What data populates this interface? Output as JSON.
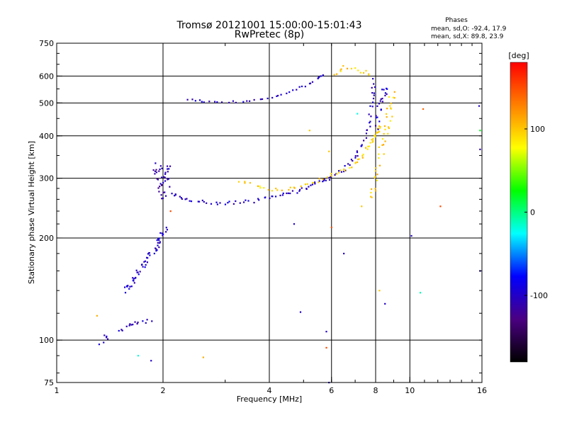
{
  "chart_data": {
    "type": "scatter",
    "title": "Tromsø 20121001 15:00:00-15:01:43",
    "subtitle": "RwPretec (8p)",
    "xlabel": "Frequency [MHz]",
    "ylabel": "Stationary phase Virtual Height [km]",
    "x_scale": "log",
    "y_scale": "log",
    "xlim": [
      1,
      16
    ],
    "ylim": [
      75,
      750
    ],
    "x_ticks": [
      1,
      2,
      4,
      6,
      8,
      10,
      16
    ],
    "x_tick_labels": [
      "1",
      "2",
      "4",
      "6",
      "8",
      "10",
      "16"
    ],
    "y_ticks": [
      75,
      100,
      200,
      300,
      400,
      500,
      600,
      750
    ],
    "y_tick_labels": [
      "75",
      "100",
      "200",
      "300",
      "400",
      "500",
      "600",
      "750"
    ],
    "grid_x": [
      2,
      4,
      6,
      8,
      10
    ],
    "grid_y": [
      100,
      200,
      300,
      400,
      500,
      600
    ],
    "grid": true,
    "stats": {
      "heading": "Phases",
      "line_o": "mean, sd,O: -92.4, 17.9",
      "line_x": "mean, sd,X: 89.8, 23.9"
    },
    "colorbar": {
      "label": "[deg]",
      "range": [
        -180,
        180
      ],
      "ticks": [
        100,
        0,
        -100
      ],
      "tick_labels": [
        "100",
        "0",
        "-100"
      ],
      "colormap": [
        "#000000",
        "#4b0082",
        "#0000ff",
        "#00ffff",
        "#00ff00",
        "#ffff00",
        "#ff8000",
        "#ff0000"
      ]
    },
    "traces": [
      {
        "name": "",
        "phase": -105,
        "n": 6,
        "curve": [
          [
            1.3,
            96
          ],
          [
            1.4,
            101
          ],
          [
            1.35,
            104
          ]
        ],
        "jitter": 0.01
      },
      {
        "name": "",
        "phase": -100,
        "n": 14,
        "curve": [
          [
            1.5,
            105
          ],
          [
            1.6,
            110
          ],
          [
            1.7,
            113
          ],
          [
            1.85,
            115
          ]
        ],
        "jitter": 0.03
      },
      {
        "name": "",
        "phase": -100,
        "n": 55,
        "curve": [
          [
            1.55,
            140
          ],
          [
            1.65,
            150
          ],
          [
            1.75,
            165
          ],
          [
            1.85,
            180
          ],
          [
            1.95,
            195
          ],
          [
            2.03,
            215
          ]
        ],
        "jitter": 0.04
      },
      {
        "name": "",
        "phase": -110,
        "n": 40,
        "curve": [
          [
            1.9,
            330
          ],
          [
            1.95,
            300
          ],
          [
            2.0,
            265
          ],
          [
            2.05,
            330
          ],
          [
            2.1,
            285
          ]
        ],
        "jitter": 0.06
      },
      {
        "name": "",
        "phase": -100,
        "n": 110,
        "curve": [
          [
            2.1,
            270
          ],
          [
            2.3,
            260
          ],
          [
            2.6,
            255
          ],
          [
            3.0,
            253
          ],
          [
            3.5,
            256
          ],
          [
            4.0,
            263
          ],
          [
            4.5,
            270
          ],
          [
            5.0,
            278
          ],
          [
            5.5,
            290
          ],
          [
            6.0,
            303
          ],
          [
            6.5,
            320
          ],
          [
            7.0,
            345
          ],
          [
            7.4,
            385
          ],
          [
            7.7,
            440
          ],
          [
            7.85,
            520
          ],
          [
            7.9,
            590
          ]
        ],
        "jitter": 0.025
      },
      {
        "name": "",
        "phase": 95,
        "n": 60,
        "curve": [
          [
            3.3,
            295
          ],
          [
            4.0,
            275
          ],
          [
            5.0,
            285
          ],
          [
            6.0,
            305
          ],
          [
            7.0,
            330
          ],
          [
            7.6,
            370
          ],
          [
            8.0,
            400
          ],
          [
            8.3,
            430
          ]
        ],
        "jitter": 0.025
      },
      {
        "name": "",
        "phase": 100,
        "n": 40,
        "curve": [
          [
            7.8,
            260
          ],
          [
            8.0,
            300
          ],
          [
            8.3,
            360
          ],
          [
            8.6,
            420
          ],
          [
            8.8,
            480
          ],
          [
            8.9,
            540
          ]
        ],
        "jitter": 0.04
      },
      {
        "name": "",
        "phase": -100,
        "n": 40,
        "curve": [
          [
            2.3,
            515
          ],
          [
            2.6,
            505
          ],
          [
            3.0,
            503
          ],
          [
            3.5,
            505
          ],
          [
            4.0,
            515
          ],
          [
            4.5,
            535
          ],
          [
            5.0,
            560
          ],
          [
            5.5,
            590
          ],
          [
            5.7,
            605
          ]
        ],
        "jitter": 0.012
      },
      {
        "name": "",
        "phase": 100,
        "n": 14,
        "curve": [
          [
            6.1,
            600
          ],
          [
            6.5,
            640
          ],
          [
            7.2,
            620
          ],
          [
            7.8,
            610
          ]
        ],
        "jitter": 0.03
      },
      {
        "name": "",
        "phase": -100,
        "n": 20,
        "curve": [
          [
            8.0,
            420
          ],
          [
            8.2,
            480
          ],
          [
            8.4,
            520
          ],
          [
            8.6,
            560
          ]
        ],
        "jitter": 0.04
      }
    ],
    "scatter_points": [
      {
        "x": 1.3,
        "y": 118,
        "phase": 110
      },
      {
        "x": 1.7,
        "y": 90,
        "phase": -20
      },
      {
        "x": 1.85,
        "y": 87,
        "phase": -100
      },
      {
        "x": 2.1,
        "y": 240,
        "phase": 150
      },
      {
        "x": 2.6,
        "y": 89,
        "phase": 110
      },
      {
        "x": 4.7,
        "y": 220,
        "phase": -100
      },
      {
        "x": 4.9,
        "y": 121,
        "phase": -100
      },
      {
        "x": 5.8,
        "y": 106,
        "phase": -100
      },
      {
        "x": 5.8,
        "y": 95,
        "phase": 150
      },
      {
        "x": 5.9,
        "y": 75,
        "phase": -100
      },
      {
        "x": 6.0,
        "y": 215,
        "phase": 150
      },
      {
        "x": 6.5,
        "y": 180,
        "phase": -100
      },
      {
        "x": 7.3,
        "y": 248,
        "phase": 100
      },
      {
        "x": 8.5,
        "y": 128,
        "phase": -100
      },
      {
        "x": 8.2,
        "y": 140,
        "phase": 100
      },
      {
        "x": 10.1,
        "y": 203,
        "phase": -100
      },
      {
        "x": 10.7,
        "y": 138,
        "phase": -10
      },
      {
        "x": 10.9,
        "y": 480,
        "phase": 140
      },
      {
        "x": 12.2,
        "y": 248,
        "phase": 150
      },
      {
        "x": 15.7,
        "y": 490,
        "phase": -100
      },
      {
        "x": 15.8,
        "y": 415,
        "phase": 20
      },
      {
        "x": 15.8,
        "y": 365,
        "phase": -110
      },
      {
        "x": 15.8,
        "y": 160,
        "phase": -100
      },
      {
        "x": 5.9,
        "y": 360,
        "phase": 100
      },
      {
        "x": 5.2,
        "y": 415,
        "phase": 100
      },
      {
        "x": 7.1,
        "y": 465,
        "phase": -20
      }
    ]
  }
}
